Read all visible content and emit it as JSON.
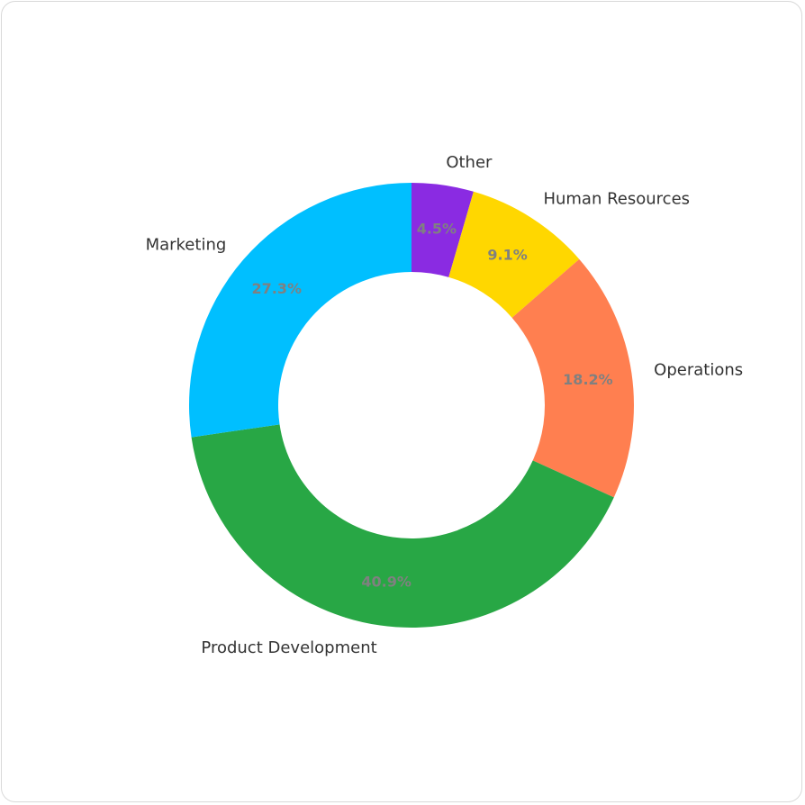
{
  "chart_data": {
    "type": "pie",
    "variant": "donut",
    "title": "",
    "categories": [
      "Other",
      "Human Resources",
      "Operations",
      "Product Development",
      "Marketing"
    ],
    "values": [
      4.5,
      9.1,
      18.2,
      40.9,
      27.3
    ],
    "value_labels": [
      "4.5%",
      "9.1%",
      "18.2%",
      "40.9%",
      "27.3%"
    ],
    "colors": [
      "#8a2be2",
      "#ffd700",
      "#ff7f50",
      "#28a745",
      "#00bfff"
    ],
    "start_angle": "12 o'clock",
    "direction": "clockwise",
    "legend": "none"
  }
}
